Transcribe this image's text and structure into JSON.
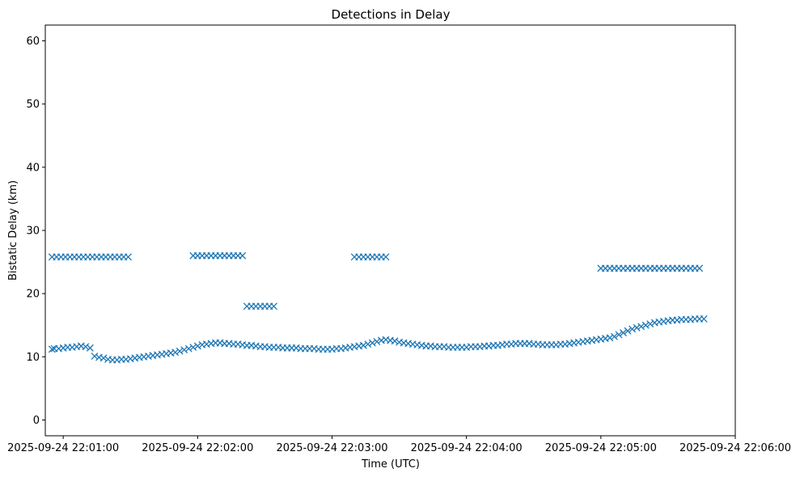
{
  "chart_data": {
    "type": "scatter",
    "title": "Detections in Delay",
    "xlabel": "Time (UTC)",
    "ylabel": "Bistatic Delay (km)",
    "marker": "x",
    "color": "#1f77b4",
    "grid": false,
    "xlim": [
      "2025-09-24 22:00:52",
      "2025-09-24 22:06:00"
    ],
    "ylim": [
      -2.5,
      62.5
    ],
    "x_ticks": [
      "2025-09-24 22:01:00",
      "2025-09-24 22:02:00",
      "2025-09-24 22:03:00",
      "2025-09-24 22:04:00",
      "2025-09-24 22:05:00",
      "2025-09-24 22:06:00"
    ],
    "y_ticks": [
      0,
      10,
      20,
      30,
      40,
      50,
      60
    ],
    "series": [
      {
        "values_x_time_utc": [
          "2025-09-24 22:00:55",
          "2025-09-24 22:00:56",
          "2025-09-24 22:00:58",
          "2025-09-24 22:01:00",
          "2025-09-24 22:01:02",
          "2025-09-24 22:01:04",
          "2025-09-24 22:01:06",
          "2025-09-24 22:01:08",
          "2025-09-24 22:01:10",
          "2025-09-24 22:01:12",
          "2025-09-24 22:01:14",
          "2025-09-24 22:01:16",
          "2025-09-24 22:01:18",
          "2025-09-24 22:01:20",
          "2025-09-24 22:01:22",
          "2025-09-24 22:01:24",
          "2025-09-24 22:01:26",
          "2025-09-24 22:01:28",
          "2025-09-24 22:01:30",
          "2025-09-24 22:01:32",
          "2025-09-24 22:01:34",
          "2025-09-24 22:01:36",
          "2025-09-24 22:01:38",
          "2025-09-24 22:01:40",
          "2025-09-24 22:01:42",
          "2025-09-24 22:01:44",
          "2025-09-24 22:01:46",
          "2025-09-24 22:01:48",
          "2025-09-24 22:01:50",
          "2025-09-24 22:01:52",
          "2025-09-24 22:01:54",
          "2025-09-24 22:01:56",
          "2025-09-24 22:01:58",
          "2025-09-24 22:02:00",
          "2025-09-24 22:02:02",
          "2025-09-24 22:02:04",
          "2025-09-24 22:02:06",
          "2025-09-24 22:02:08",
          "2025-09-24 22:02:10",
          "2025-09-24 22:02:12",
          "2025-09-24 22:02:14",
          "2025-09-24 22:02:16",
          "2025-09-24 22:02:18",
          "2025-09-24 22:02:20",
          "2025-09-24 22:02:22",
          "2025-09-24 22:02:24",
          "2025-09-24 22:02:26",
          "2025-09-24 22:02:28",
          "2025-09-24 22:02:30",
          "2025-09-24 22:02:32",
          "2025-09-24 22:02:34",
          "2025-09-24 22:02:36",
          "2025-09-24 22:02:38",
          "2025-09-24 22:02:40",
          "2025-09-24 22:02:42",
          "2025-09-24 22:02:44",
          "2025-09-24 22:02:46",
          "2025-09-24 22:02:48",
          "2025-09-24 22:02:50",
          "2025-09-24 22:02:52",
          "2025-09-24 22:02:54",
          "2025-09-24 22:02:56",
          "2025-09-24 22:02:58",
          "2025-09-24 22:03:00",
          "2025-09-24 22:03:02",
          "2025-09-24 22:03:04",
          "2025-09-24 22:03:06",
          "2025-09-24 22:03:08",
          "2025-09-24 22:03:10",
          "2025-09-24 22:03:12",
          "2025-09-24 22:03:14",
          "2025-09-24 22:03:16",
          "2025-09-24 22:03:18",
          "2025-09-24 22:03:20",
          "2025-09-24 22:03:22",
          "2025-09-24 22:03:24",
          "2025-09-24 22:03:26",
          "2025-09-24 22:03:28",
          "2025-09-24 22:03:30",
          "2025-09-24 22:03:32",
          "2025-09-24 22:03:34",
          "2025-09-24 22:03:36",
          "2025-09-24 22:03:38",
          "2025-09-24 22:03:40",
          "2025-09-24 22:03:42",
          "2025-09-24 22:03:44",
          "2025-09-24 22:03:46",
          "2025-09-24 22:03:48",
          "2025-09-24 22:03:50",
          "2025-09-24 22:03:52",
          "2025-09-24 22:03:54",
          "2025-09-24 22:03:56",
          "2025-09-24 22:03:58",
          "2025-09-24 22:04:00",
          "2025-09-24 22:04:02",
          "2025-09-24 22:04:04",
          "2025-09-24 22:04:06",
          "2025-09-24 22:04:08",
          "2025-09-24 22:04:10",
          "2025-09-24 22:04:12",
          "2025-09-24 22:04:14",
          "2025-09-24 22:04:16",
          "2025-09-24 22:04:18",
          "2025-09-24 22:04:20",
          "2025-09-24 22:04:22",
          "2025-09-24 22:04:24",
          "2025-09-24 22:04:26",
          "2025-09-24 22:04:28",
          "2025-09-24 22:04:30",
          "2025-09-24 22:04:32",
          "2025-09-24 22:04:34",
          "2025-09-24 22:04:36",
          "2025-09-24 22:04:38",
          "2025-09-24 22:04:40",
          "2025-09-24 22:04:42",
          "2025-09-24 22:04:44",
          "2025-09-24 22:04:46",
          "2025-09-24 22:04:48",
          "2025-09-24 22:04:50",
          "2025-09-24 22:04:52",
          "2025-09-24 22:04:54",
          "2025-09-24 22:04:56",
          "2025-09-24 22:04:58",
          "2025-09-24 22:05:00",
          "2025-09-24 22:05:02",
          "2025-09-24 22:05:04",
          "2025-09-24 22:05:06",
          "2025-09-24 22:05:08",
          "2025-09-24 22:05:10",
          "2025-09-24 22:05:12",
          "2025-09-24 22:05:14",
          "2025-09-24 22:05:16",
          "2025-09-24 22:05:18",
          "2025-09-24 22:05:20",
          "2025-09-24 22:05:22",
          "2025-09-24 22:05:24",
          "2025-09-24 22:05:26",
          "2025-09-24 22:05:28",
          "2025-09-24 22:05:30",
          "2025-09-24 22:05:32",
          "2025-09-24 22:05:34",
          "2025-09-24 22:05:36",
          "2025-09-24 22:05:38",
          "2025-09-24 22:05:40",
          "2025-09-24 22:05:42",
          "2025-09-24 22:05:44",
          "2025-09-24 22:05:46"
        ],
        "values_y_km": [
          11.2,
          11.3,
          11.3,
          11.4,
          11.5,
          11.5,
          11.6,
          11.7,
          11.6,
          11.4,
          10.1,
          9.9,
          9.8,
          9.6,
          9.5,
          9.5,
          9.6,
          9.6,
          9.7,
          9.8,
          9.9,
          10.0,
          10.1,
          10.2,
          10.3,
          10.4,
          10.5,
          10.6,
          10.7,
          10.9,
          11.1,
          11.3,
          11.5,
          11.7,
          11.9,
          12.0,
          12.1,
          12.2,
          12.2,
          12.1,
          12.1,
          12.0,
          12.0,
          11.9,
          11.8,
          11.8,
          11.7,
          11.6,
          11.6,
          11.5,
          11.5,
          11.5,
          11.4,
          11.4,
          11.4,
          11.4,
          11.3,
          11.3,
          11.3,
          11.3,
          11.2,
          11.2,
          11.2,
          11.2,
          11.3,
          11.3,
          11.4,
          11.5,
          11.6,
          11.7,
          11.8,
          12.0,
          12.2,
          12.4,
          12.6,
          12.7,
          12.6,
          12.5,
          12.3,
          12.2,
          12.1,
          12.0,
          11.9,
          11.8,
          11.7,
          11.7,
          11.6,
          11.6,
          11.6,
          11.5,
          11.5,
          11.5,
          11.5,
          11.5,
          11.6,
          11.6,
          11.6,
          11.7,
          11.7,
          11.8,
          11.8,
          11.9,
          12.0,
          12.0,
          12.1,
          12.1,
          12.1,
          12.1,
          12.0,
          12.0,
          11.9,
          11.9,
          11.9,
          11.9,
          12.0,
          12.0,
          12.1,
          12.2,
          12.3,
          12.4,
          12.5,
          12.6,
          12.7,
          12.8,
          12.9,
          13.0,
          13.2,
          13.5,
          13.8,
          14.1,
          14.4,
          14.6,
          14.8,
          15.0,
          15.2,
          15.4,
          15.5,
          15.6,
          15.7,
          15.8,
          15.8,
          15.9,
          15.9,
          15.9,
          16.0,
          16.0,
          16.0
        ],
        "note_bands": [
          {
            "from_time": "2025-09-24 22:00:55",
            "to_time": "2025-09-24 22:01:30",
            "delay_km": 25.8
          },
          {
            "from_time": "2025-09-24 22:01:58",
            "to_time": "2025-09-24 22:02:20",
            "delay_km": 26.0
          },
          {
            "from_time": "2025-09-24 22:02:22",
            "to_time": "2025-09-24 22:02:35",
            "delay_km": 18.0
          },
          {
            "from_time": "2025-09-24 22:03:10",
            "to_time": "2025-09-24 22:03:24",
            "delay_km": 25.8
          },
          {
            "from_time": "2025-09-24 22:05:00",
            "to_time": "2025-09-24 22:05:45",
            "delay_km": 24.0
          }
        ]
      }
    ]
  }
}
